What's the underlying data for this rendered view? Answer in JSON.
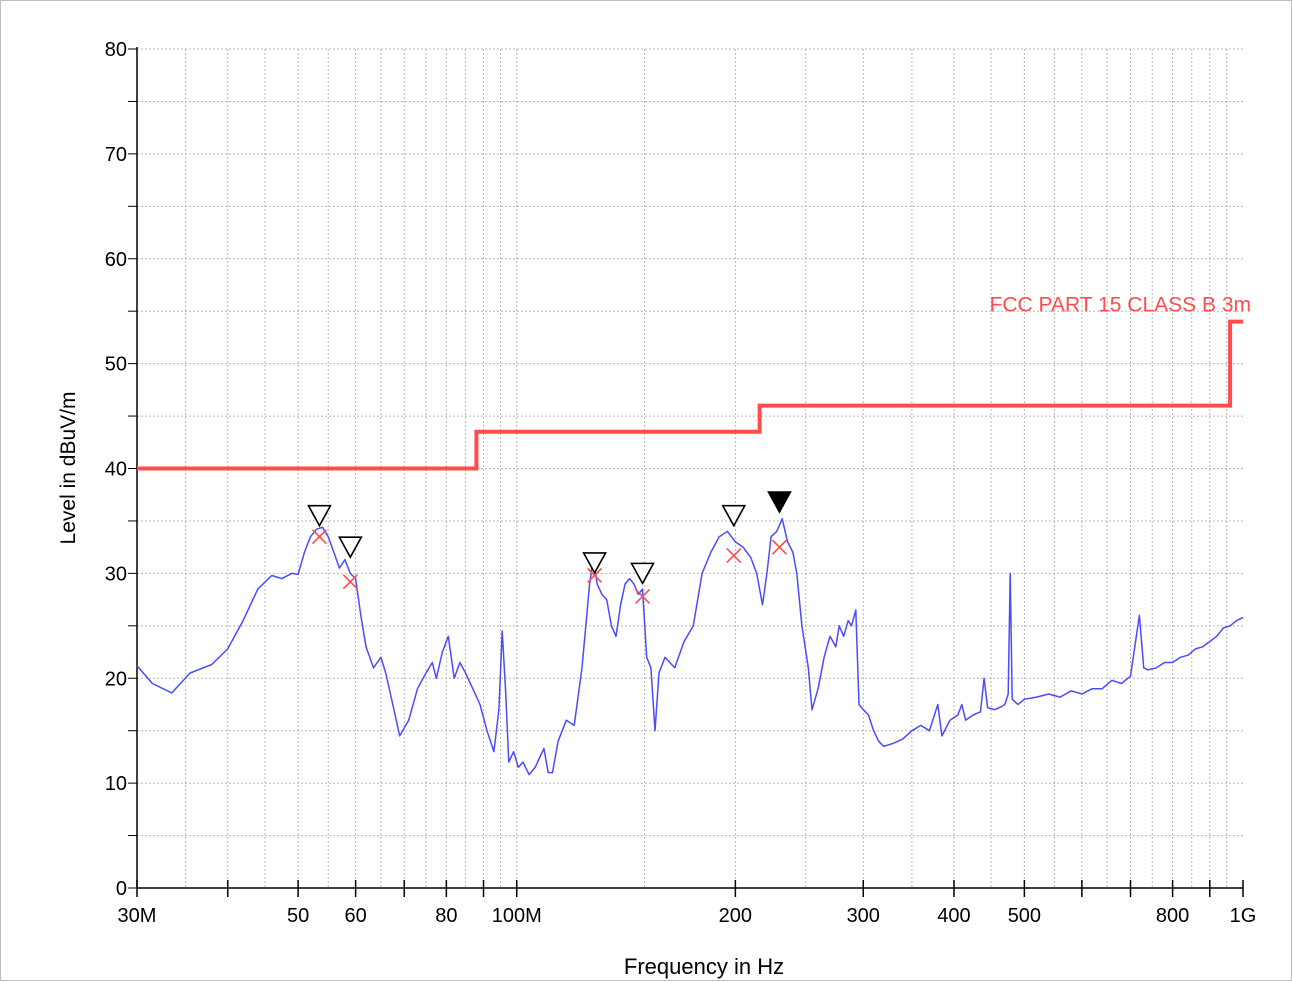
{
  "chart_data": {
    "type": "line",
    "xlabel": "Frequency in Hz",
    "ylabel": "Level in dBuV/m",
    "x_scale": "log",
    "xlim_hz": [
      30000000,
      1000000000
    ],
    "ylim": [
      0,
      80
    ],
    "grid": true,
    "y_ticks": [
      "0",
      "10",
      "20",
      "30",
      "40",
      "50",
      "60",
      "70",
      "80"
    ],
    "x_ticks": [
      {
        "hz": 30000000,
        "label": "30M"
      },
      {
        "hz": 40000000,
        "label": ""
      },
      {
        "hz": 50000000,
        "label": "50"
      },
      {
        "hz": 60000000,
        "label": "60"
      },
      {
        "hz": 70000000,
        "label": ""
      },
      {
        "hz": 80000000,
        "label": "80"
      },
      {
        "hz": 90000000,
        "label": ""
      },
      {
        "hz": 100000000,
        "label": "100M"
      },
      {
        "hz": 200000000,
        "label": "200"
      },
      {
        "hz": 300000000,
        "label": "300"
      },
      {
        "hz": 400000000,
        "label": "400"
      },
      {
        "hz": 500000000,
        "label": "500"
      },
      {
        "hz": 600000000,
        "label": ""
      },
      {
        "hz": 700000000,
        "label": ""
      },
      {
        "hz": 800000000,
        "label": "800"
      },
      {
        "hz": 900000000,
        "label": ""
      },
      {
        "hz": 1000000000,
        "label": "1G"
      }
    ],
    "limit_line": {
      "name": "FCC PART 15 CLASS B 3m",
      "color": "#ff4d4d",
      "points_mhz_db": [
        [
          30,
          40
        ],
        [
          88,
          40
        ],
        [
          88,
          43.5
        ],
        [
          216,
          43.5
        ],
        [
          216,
          46
        ],
        [
          960,
          46
        ],
        [
          960,
          54
        ],
        [
          1000,
          54
        ]
      ]
    },
    "trace": {
      "color": "#4b4bff",
      "points_mhz_db": [
        [
          30,
          21.2
        ],
        [
          31.5,
          19.5
        ],
        [
          33.5,
          18.6
        ],
        [
          35.5,
          20.5
        ],
        [
          38,
          21.3
        ],
        [
          40,
          22.8
        ],
        [
          42,
          25.5
        ],
        [
          44,
          28.5
        ],
        [
          46,
          29.8
        ],
        [
          47.5,
          29.5
        ],
        [
          49,
          30.0
        ],
        [
          50,
          29.9
        ],
        [
          51,
          32.0
        ],
        [
          52,
          33.5
        ],
        [
          53,
          34.2
        ],
        [
          54,
          34.4
        ],
        [
          55,
          33.5
        ],
        [
          56,
          32.0
        ],
        [
          57,
          30.5
        ],
        [
          58,
          31.3
        ],
        [
          59,
          30.0
        ],
        [
          60,
          29.5
        ],
        [
          61,
          26.0
        ],
        [
          62,
          23.0
        ],
        [
          63.5,
          21.0
        ],
        [
          65,
          22.0
        ],
        [
          66,
          20.5
        ],
        [
          67.5,
          17.5
        ],
        [
          69,
          14.5
        ],
        [
          71,
          16.0
        ],
        [
          73,
          19.0
        ],
        [
          75,
          20.5
        ],
        [
          76.5,
          21.5
        ],
        [
          77.5,
          20.0
        ],
        [
          79,
          22.5
        ],
        [
          80.5,
          24.0
        ],
        [
          82,
          20.0
        ],
        [
          83.5,
          21.5
        ],
        [
          85,
          20.5
        ],
        [
          87,
          19.0
        ],
        [
          89,
          17.5
        ],
        [
          91,
          15.0
        ],
        [
          93,
          13.0
        ],
        [
          94.5,
          17.0
        ],
        [
          95.5,
          24.5
        ],
        [
          96.5,
          19.0
        ],
        [
          97.5,
          12.0
        ],
        [
          99,
          13.0
        ],
        [
          100.5,
          11.5
        ],
        [
          102,
          12.0
        ],
        [
          104,
          10.8
        ],
        [
          106,
          11.5
        ],
        [
          109,
          13.3
        ],
        [
          110.5,
          11.0
        ],
        [
          112,
          11.0
        ],
        [
          114,
          14.0
        ],
        [
          117,
          16.0
        ],
        [
          120,
          15.5
        ],
        [
          123,
          21.0
        ],
        [
          126,
          29.0
        ],
        [
          127.5,
          31.5
        ],
        [
          129,
          29.0
        ],
        [
          131,
          28.0
        ],
        [
          133,
          27.5
        ],
        [
          135,
          25.0
        ],
        [
          137,
          24.0
        ],
        [
          139,
          27.0
        ],
        [
          141,
          29.0
        ],
        [
          143,
          29.5
        ],
        [
          145,
          29.0
        ],
        [
          147,
          28.0
        ],
        [
          149,
          28.5
        ],
        [
          151,
          22.0
        ],
        [
          153,
          21.0
        ],
        [
          155,
          15.0
        ],
        [
          157,
          20.5
        ],
        [
          160,
          22.0
        ],
        [
          165,
          21.0
        ],
        [
          170,
          23.5
        ],
        [
          175,
          25.0
        ],
        [
          180,
          30.0
        ],
        [
          185,
          32.0
        ],
        [
          190,
          33.5
        ],
        [
          195,
          34.0
        ],
        [
          200,
          33.0
        ],
        [
          205,
          32.5
        ],
        [
          210,
          31.5
        ],
        [
          214,
          30.0
        ],
        [
          218,
          27.0
        ],
        [
          221,
          30.0
        ],
        [
          224,
          33.5
        ],
        [
          228,
          34.0
        ],
        [
          232,
          35.2
        ],
        [
          236,
          33.0
        ],
        [
          240,
          32.0
        ],
        [
          243,
          30.0
        ],
        [
          247,
          25.0
        ],
        [
          252,
          21.0
        ],
        [
          255,
          17.0
        ],
        [
          260,
          19.0
        ],
        [
          265,
          22.0
        ],
        [
          270,
          24.0
        ],
        [
          275,
          23.0
        ],
        [
          278,
          25.0
        ],
        [
          282,
          24.0
        ],
        [
          286,
          25.5
        ],
        [
          289,
          25.0
        ],
        [
          293,
          26.5
        ],
        [
          296,
          17.5
        ],
        [
          300,
          17.0
        ],
        [
          305,
          16.5
        ],
        [
          310,
          15.0
        ],
        [
          315,
          14.0
        ],
        [
          320,
          13.5
        ],
        [
          330,
          13.8
        ],
        [
          340,
          14.2
        ],
        [
          350,
          15.0
        ],
        [
          360,
          15.5
        ],
        [
          370,
          15.0
        ],
        [
          380,
          17.5
        ],
        [
          385,
          14.5
        ],
        [
          395,
          16.0
        ],
        [
          405,
          16.5
        ],
        [
          410,
          17.5
        ],
        [
          415,
          16.0
        ],
        [
          425,
          16.5
        ],
        [
          435,
          16.8
        ],
        [
          440,
          20.0
        ],
        [
          445,
          17.2
        ],
        [
          455,
          17.0
        ],
        [
          465,
          17.3
        ],
        [
          470,
          17.5
        ],
        [
          475,
          18.5
        ],
        [
          478,
          30.0
        ],
        [
          481,
          18.0
        ],
        [
          490,
          17.5
        ],
        [
          500,
          18.0
        ],
        [
          520,
          18.2
        ],
        [
          540,
          18.5
        ],
        [
          560,
          18.2
        ],
        [
          580,
          18.8
        ],
        [
          600,
          18.5
        ],
        [
          620,
          19.0
        ],
        [
          640,
          19.0
        ],
        [
          660,
          19.8
        ],
        [
          680,
          19.5
        ],
        [
          700,
          20.2
        ],
        [
          720,
          26.0
        ],
        [
          730,
          21.0
        ],
        [
          740,
          20.8
        ],
        [
          760,
          21.0
        ],
        [
          780,
          21.5
        ],
        [
          800,
          21.5
        ],
        [
          820,
          22.0
        ],
        [
          840,
          22.2
        ],
        [
          860,
          22.8
        ],
        [
          880,
          23.0
        ],
        [
          900,
          23.5
        ],
        [
          920,
          24.0
        ],
        [
          940,
          24.8
        ],
        [
          960,
          25.0
        ],
        [
          980,
          25.5
        ],
        [
          1000,
          25.8
        ]
      ]
    },
    "peak_markers": [
      {
        "mhz": 53.5,
        "db": 35.5,
        "filled": false
      },
      {
        "mhz": 59,
        "db": 32.5,
        "filled": false
      },
      {
        "mhz": 128,
        "db": 31.0,
        "filled": false
      },
      {
        "mhz": 149,
        "db": 30.0,
        "filled": false
      },
      {
        "mhz": 199,
        "db": 35.5,
        "filled": false
      },
      {
        "mhz": 230,
        "db": 36.8,
        "filled": true
      }
    ],
    "qp_markers": [
      {
        "mhz": 53.5,
        "db": 33.5
      },
      {
        "mhz": 59,
        "db": 29.2
      },
      {
        "mhz": 128,
        "db": 29.8
      },
      {
        "mhz": 149,
        "db": 27.8
      },
      {
        "mhz": 199,
        "db": 31.7
      },
      {
        "mhz": 230,
        "db": 32.5
      }
    ],
    "marker_colors": {
      "peak": "#000000",
      "qp": "#ff4d4d"
    }
  }
}
